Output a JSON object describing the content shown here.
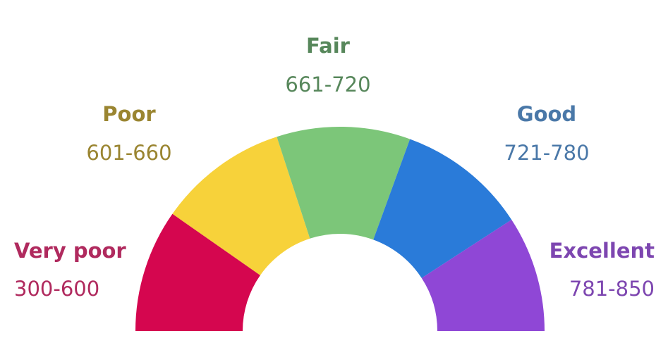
{
  "chart_data": {
    "type": "pie",
    "style": "semicircle-donut-gauge",
    "segments": [
      {
        "name": "Very poor",
        "range": "300-600",
        "color": "#d5064f",
        "label_color": "#b02a5e"
      },
      {
        "name": "Poor",
        "range": "601-660",
        "color": "#f7d23a",
        "label_color": "#9a8531"
      },
      {
        "name": "Fair",
        "range": "661-720",
        "color": "#7cc679",
        "label_color": "#57875b"
      },
      {
        "name": "Good",
        "range": "721-780",
        "color": "#2a7bd9",
        "label_color": "#4a78a8"
      },
      {
        "name": "Excellent",
        "range": "781-850",
        "color": "#8f47d6",
        "label_color": "#7d46b0"
      }
    ]
  }
}
